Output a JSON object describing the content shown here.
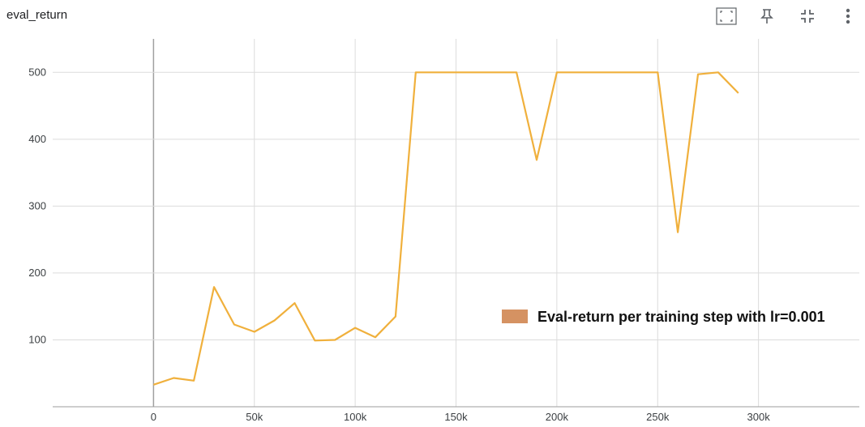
{
  "card": {
    "title": "eval_return"
  },
  "toolbar": {
    "icons": [
      "fit-domain-icon",
      "pin-icon",
      "collapse-icon",
      "more-vert-icon"
    ],
    "icon_color": "#5f6368"
  },
  "colors": {
    "line": "#f0b03c",
    "legend_swatch": "#d59262",
    "grid": "#dcdcdc",
    "zero_axis": "#a0a0a0"
  },
  "chart_data": {
    "type": "line",
    "title": "",
    "xlabel": "",
    "ylabel": "",
    "xlim": [
      -50000,
      350000
    ],
    "ylim": [
      0,
      550
    ],
    "x_ticks": [
      0,
      50000,
      100000,
      150000,
      200000,
      250000,
      300000
    ],
    "x_tick_labels": [
      "0",
      "50k",
      "100k",
      "150k",
      "200k",
      "250k",
      "300k"
    ],
    "y_ticks": [
      100,
      200,
      300,
      400,
      500
    ],
    "y_tick_labels": [
      "100",
      "200",
      "300",
      "400",
      "500"
    ],
    "grid": true,
    "legend_position": "center-right",
    "series": [
      {
        "name": "Eval-return per training step with lr=0.001",
        "x": [
          0,
          10000,
          20000,
          30000,
          40000,
          50000,
          60000,
          70000,
          80000,
          90000,
          100000,
          110000,
          120000,
          130000,
          140000,
          150000,
          160000,
          170000,
          180000,
          190000,
          200000,
          210000,
          220000,
          230000,
          240000,
          250000,
          260000,
          270000,
          280000,
          290000
        ],
        "y": [
          33,
          43,
          39,
          179,
          123,
          112,
          129,
          155,
          99,
          100,
          118,
          104,
          135,
          500,
          500,
          500,
          500,
          500,
          500,
          369,
          500,
          500,
          500,
          500,
          500,
          500,
          261,
          497,
          500,
          469
        ]
      }
    ]
  }
}
